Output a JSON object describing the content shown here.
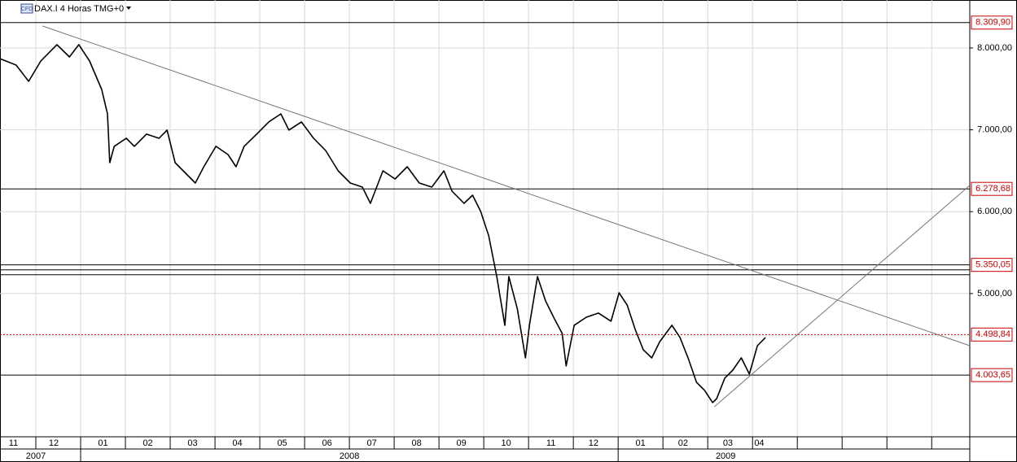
{
  "header": {
    "icon": "CFD",
    "title": "DAX.I 4 Horas TMG+0"
  },
  "chart_data": {
    "type": "line",
    "series": [
      {
        "name": "DAX.I",
        "color": "#000000",
        "x": [
          0.2,
          0.56,
          0.84,
          1.11,
          1.47,
          1.75,
          1.96,
          2.2,
          2.47,
          2.6,
          2.65,
          2.75,
          3.02,
          3.2,
          3.47,
          3.75,
          3.93,
          4.11,
          4.29,
          4.56,
          4.75,
          5.02,
          5.29,
          5.47,
          5.65,
          5.93,
          6.2,
          6.47,
          6.65,
          6.93,
          7.2,
          7.47,
          7.75,
          8.02,
          8.29,
          8.47,
          8.75,
          9.02,
          9.29,
          9.56,
          9.84,
          10.11,
          10.29,
          10.56,
          10.75,
          10.93,
          11.11,
          11.29,
          11.47,
          11.56,
          11.75,
          11.93,
          12.02,
          12.2,
          12.38,
          12.56,
          12.75,
          12.84,
          13.02,
          13.29,
          13.56,
          13.84,
          14.02,
          14.2,
          14.38,
          14.56,
          14.75,
          14.93,
          15.2,
          15.38,
          15.56,
          15.75,
          15.93,
          16.11,
          16.2,
          16.38,
          16.56,
          16.75,
          16.93,
          17.11,
          17.29
        ],
        "values": [
          7870,
          7791,
          7592,
          7841,
          8040,
          7890,
          8040,
          7841,
          7493,
          7195,
          6599,
          6798,
          6897,
          6798,
          6947,
          6897,
          6997,
          6599,
          6499,
          6350,
          6549,
          6798,
          6698,
          6549,
          6798,
          6947,
          7096,
          7195,
          6997,
          7096,
          6897,
          6748,
          6499,
          6350,
          6301,
          6102,
          6499,
          6400,
          6549,
          6350,
          6301,
          6499,
          6251,
          6102,
          6201,
          6003,
          5705,
          5208,
          4612,
          5208,
          4811,
          4214,
          4612,
          5208,
          4910,
          4711,
          4513,
          4115,
          4612,
          4711,
          4761,
          4662,
          5009,
          4860,
          4562,
          4314,
          4214,
          4413,
          4612,
          4463,
          4214,
          3916,
          3817,
          3668,
          3717,
          3966,
          4065,
          4214,
          4016,
          4363,
          4463
        ]
      }
    ],
    "trend_lines": [
      {
        "x": [
          1.15,
          21.85
        ],
        "values": [
          8268,
          4363
        ]
      },
      {
        "x": [
          16.15,
          21.85
        ],
        "values": [
          3618,
          6321
        ]
      }
    ],
    "levels": [
      {
        "value": 8309.9,
        "label": "8.309,90",
        "color": "#000000"
      },
      {
        "value": 6278.68,
        "label": "6.278,68",
        "color": "#000000"
      },
      {
        "value": 5350.05,
        "label": "5.350,05",
        "color": "#000000"
      },
      {
        "value": 4498.84,
        "label": "4.498,84",
        "color": "#cc0000",
        "dotted": true
      },
      {
        "value": 4003.65,
        "label": "4.003,65",
        "color": "#000000"
      }
    ],
    "unlabeled_levels": [
      5290,
      5230
    ],
    "xlim": [
      0.2,
      21.85
    ],
    "ylim": [
      3250,
      8586
    ],
    "yticks": [
      {
        "value": 8000,
        "label": "8.000,00"
      },
      {
        "value": 7000,
        "label": "7.000,00"
      },
      {
        "value": 6000,
        "label": "6.000,00"
      },
      {
        "value": 5000,
        "label": "5.000,00"
      }
    ],
    "xticks": [
      {
        "value": 0.5,
        "label": "11"
      },
      {
        "value": 1.4,
        "label": "12"
      },
      {
        "value": 2.5,
        "label": "01"
      },
      {
        "value": 3.5,
        "label": "02"
      },
      {
        "value": 4.5,
        "label": "03"
      },
      {
        "value": 5.5,
        "label": "04"
      },
      {
        "value": 6.5,
        "label": "05"
      },
      {
        "value": 7.5,
        "label": "06"
      },
      {
        "value": 8.5,
        "label": "07"
      },
      {
        "value": 9.5,
        "label": "08"
      },
      {
        "value": 10.5,
        "label": "09"
      },
      {
        "value": 11.5,
        "label": "10"
      },
      {
        "value": 12.5,
        "label": "11"
      },
      {
        "value": 13.45,
        "label": "12"
      },
      {
        "value": 14.5,
        "label": "01"
      },
      {
        "value": 15.45,
        "label": "02"
      },
      {
        "value": 16.45,
        "label": "03"
      },
      {
        "value": 17.15,
        "label": "04"
      }
    ],
    "month_starts": [
      1,
      2,
      3,
      4,
      5,
      6,
      7,
      8,
      9,
      10,
      11,
      12,
      13,
      14,
      15,
      16,
      17,
      18,
      19,
      20,
      21
    ],
    "years": [
      {
        "value": 1.0,
        "label": "2007"
      },
      {
        "value": 8.0,
        "label": "2008"
      },
      {
        "value": 16.4,
        "label": "2009"
      }
    ],
    "year_starts": [
      2,
      14
    ],
    "grid": true
  }
}
